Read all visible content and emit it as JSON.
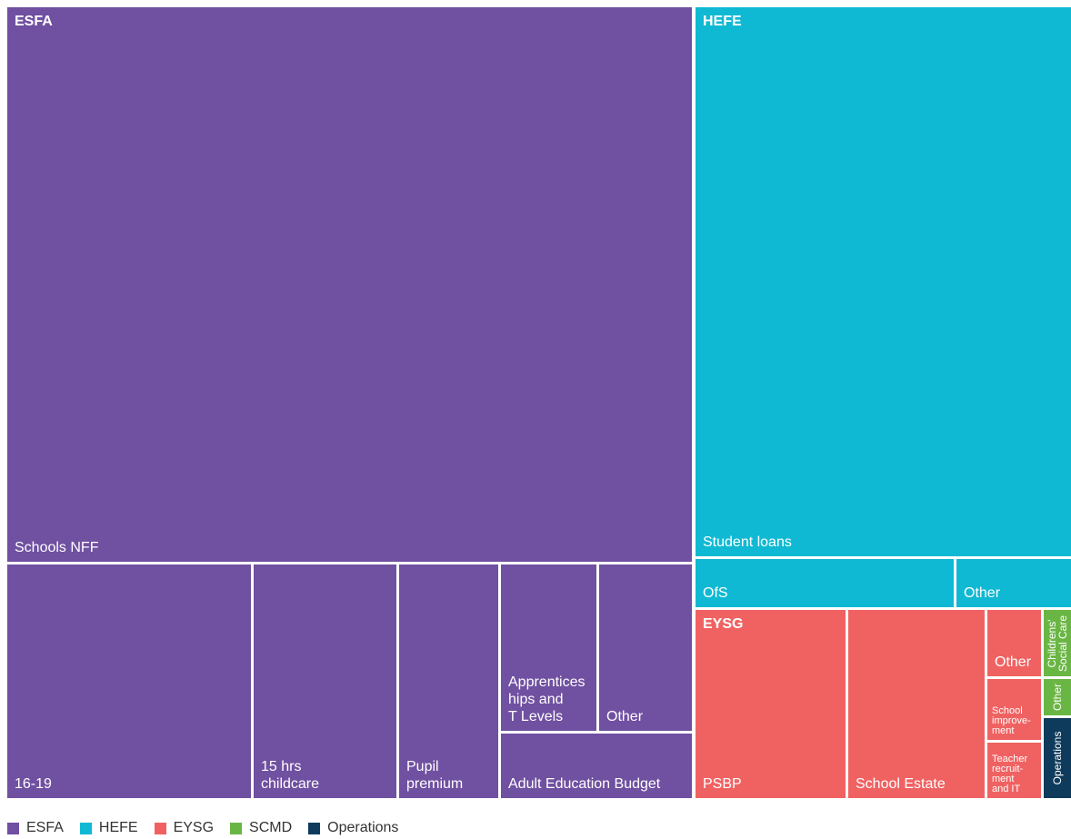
{
  "chart_data": {
    "type": "treemap",
    "colors": {
      "ESFA": "#7050a1",
      "HEFE": "#10b9d3",
      "EYSG": "#f06262",
      "SCMD": "#6ab645",
      "Operations": "#0e3b5c"
    },
    "groups": [
      {
        "name": "ESFA",
        "items": [
          {
            "label": "Schools NFF"
          },
          {
            "label": "16-19"
          },
          {
            "label": "15 hrs\nchildcare"
          },
          {
            "label": "Pupil\npremium"
          },
          {
            "label": "Apprentices\nhips and\nT Levels"
          },
          {
            "label": "Other"
          },
          {
            "label": "Adult Education Budget"
          }
        ]
      },
      {
        "name": "HEFE",
        "items": [
          {
            "label": "Student loans"
          },
          {
            "label": "OfS"
          },
          {
            "label": "Other"
          }
        ]
      },
      {
        "name": "EYSG",
        "items": [
          {
            "label": "PSBP"
          },
          {
            "label": "School Estate"
          },
          {
            "label": "Other"
          },
          {
            "label": "School\nimprove-\nment"
          },
          {
            "label": "Teacher\nrecruit-\nment\nand IT"
          }
        ]
      },
      {
        "name": "SCMD",
        "items": [
          {
            "label": "Childrens'\nSocial Care"
          },
          {
            "label": "Other"
          }
        ]
      },
      {
        "name": "Operations",
        "items": [
          {
            "label": "Operations"
          }
        ]
      }
    ],
    "legend": [
      "ESFA",
      "HEFE",
      "EYSG",
      "SCMD",
      "Operations"
    ]
  }
}
